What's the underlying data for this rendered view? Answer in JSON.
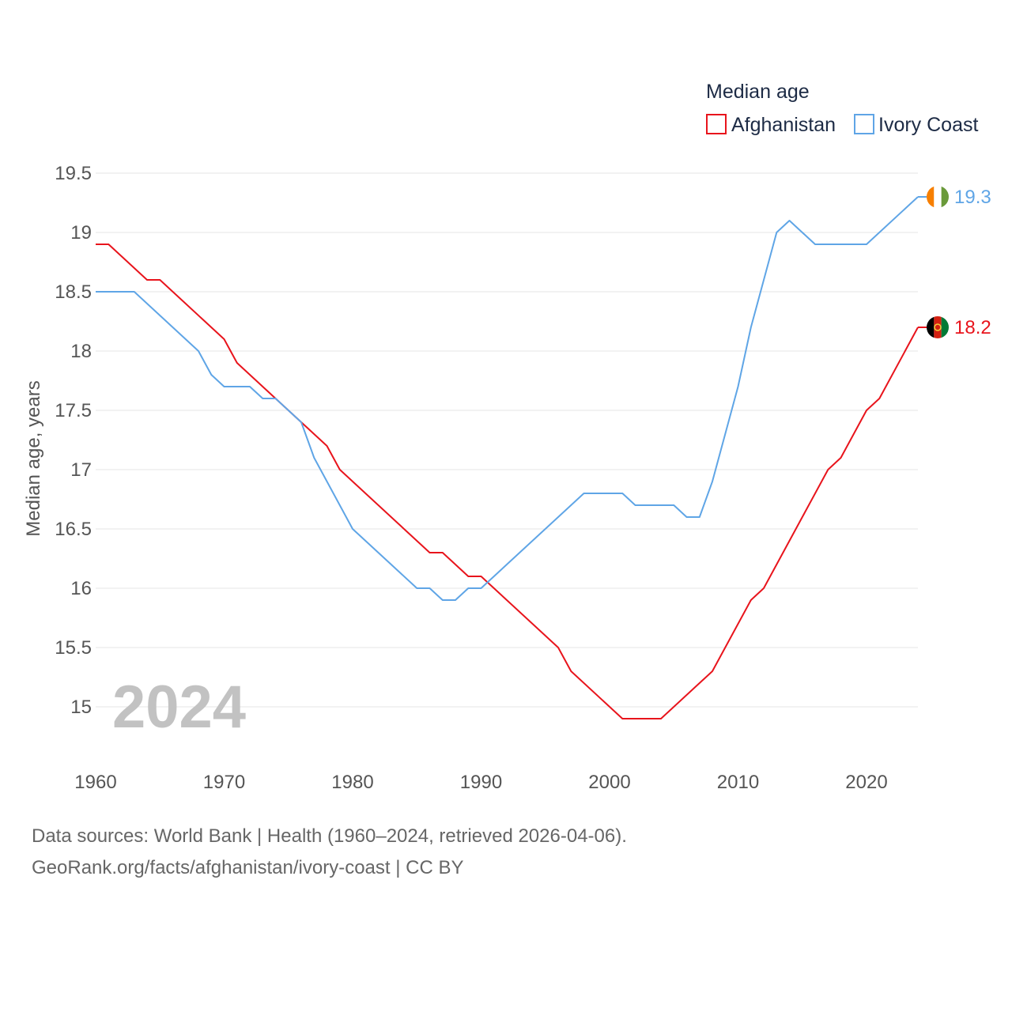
{
  "chart_data": {
    "type": "line",
    "legend_title": "Median age",
    "ylabel": "Median age, years",
    "xlabel": "",
    "year_label": "2024",
    "xlim": [
      1960,
      2024
    ],
    "ylim": [
      14.5,
      19.5
    ],
    "x_ticks": [
      1960,
      1970,
      1980,
      1990,
      2000,
      2010,
      2020
    ],
    "y_ticks": [
      15,
      15.5,
      16,
      16.5,
      17,
      17.5,
      18,
      18.5,
      19,
      19.5
    ],
    "x_tick_labels": [
      "1960",
      "1970",
      "1980",
      "1990",
      "2000",
      "2010",
      "2020"
    ],
    "y_tick_labels": [
      "15",
      "15.5",
      "16",
      "16.5",
      "17",
      "17.5",
      "18",
      "18.5",
      "19",
      "19.5"
    ],
    "grid": true,
    "legend_position": "top-right",
    "series": [
      {
        "name": "Afghanistan",
        "color": "#e8141c",
        "end_label": "18.2",
        "flag_icon": "afghanistan-flag-icon",
        "x": [
          1960,
          1961,
          1964,
          1965,
          1970,
          1971,
          1974,
          1976,
          1978,
          1979,
          1986,
          1987,
          1989,
          1990,
          1996,
          1997,
          2001,
          2004,
          2008,
          2011,
          2012,
          2017,
          2018,
          2020,
          2021,
          2024
        ],
        "values": [
          18.9,
          18.9,
          18.6,
          18.6,
          18.1,
          17.9,
          17.6,
          17.4,
          17.2,
          17.0,
          16.3,
          16.3,
          16.1,
          16.1,
          15.5,
          15.3,
          14.9,
          14.9,
          15.3,
          15.9,
          16.0,
          17.0,
          17.1,
          17.5,
          17.6,
          18.2
        ]
      },
      {
        "name": "Ivory Coast",
        "color": "#5fa5e6",
        "end_label": "19.3",
        "flag_icon": "ivory-coast-flag-icon",
        "x": [
          1960,
          1963,
          1968,
          1969,
          1970,
          1972,
          1973,
          1974,
          1976,
          1977,
          1980,
          1985,
          1986,
          1987,
          1988,
          1989,
          1990,
          1998,
          2000,
          2001,
          2002,
          2005,
          2006,
          2007,
          2008,
          2010,
          2011,
          2013,
          2014,
          2016,
          2020,
          2024
        ],
        "values": [
          18.5,
          18.5,
          18.0,
          17.8,
          17.7,
          17.7,
          17.6,
          17.6,
          17.4,
          17.1,
          16.5,
          16.0,
          16.0,
          15.9,
          15.9,
          16.0,
          16.0,
          16.8,
          16.8,
          16.8,
          16.7,
          16.7,
          16.6,
          16.6,
          16.9,
          17.7,
          18.2,
          19.0,
          19.1,
          18.9,
          18.9,
          19.3
        ]
      }
    ]
  },
  "footer": {
    "line1": "Data sources: World Bank | Health (1960–2024, retrieved 2026-04-06).",
    "line2": "GeoRank.org/facts/afghanistan/ivory-coast | CC BY"
  }
}
